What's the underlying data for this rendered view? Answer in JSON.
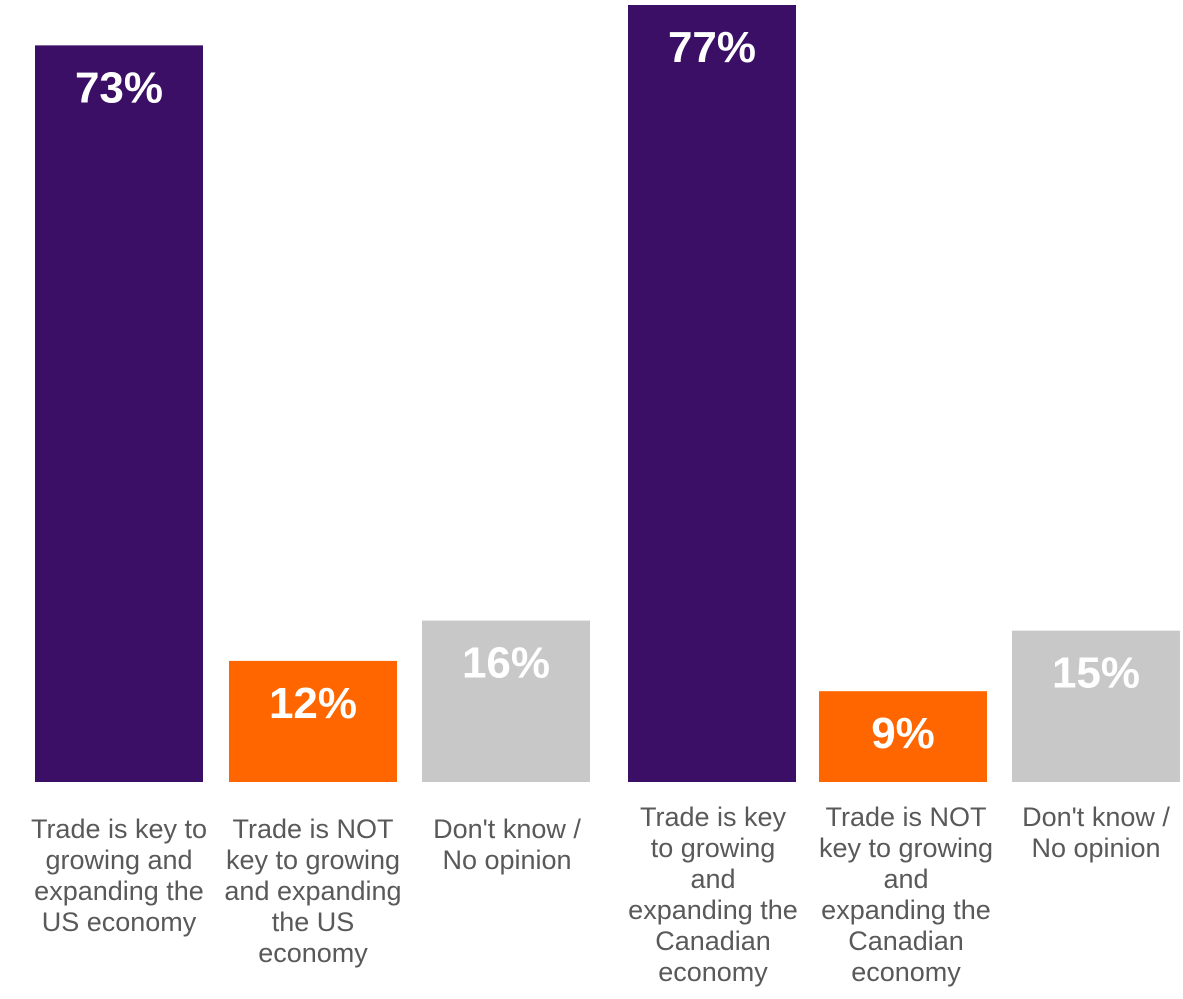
{
  "colors": {
    "key": "#3b0f66",
    "not_key": "#ff6600",
    "dont_know": "#c8c8c8",
    "category_text": "#595959",
    "value_text": "#ffffff"
  },
  "chart_data": [
    {
      "type": "bar",
      "categories": [
        [
          "Trade is key to",
          "growing and",
          "expanding the",
          "US economy"
        ],
        [
          "Trade is NOT",
          "key to growing",
          "and expanding",
          "the US",
          "economy"
        ],
        [
          "Don't know /",
          "No opinion"
        ]
      ],
      "values": [
        73,
        12,
        16
      ],
      "value_labels": [
        "73%",
        "12%",
        "16%"
      ],
      "ylim": [
        0,
        77
      ],
      "grid": false,
      "legend": "none"
    },
    {
      "type": "bar",
      "categories": [
        [
          "Trade is key",
          "to growing",
          "and",
          "expanding the",
          "Canadian",
          "economy"
        ],
        [
          "Trade is NOT",
          "key to growing",
          "and",
          "expanding the",
          "Canadian",
          "economy"
        ],
        [
          "Don't know /",
          "No opinion"
        ]
      ],
      "values": [
        77,
        9,
        15
      ],
      "value_labels": [
        "77%",
        "9%",
        "15%"
      ],
      "ylim": [
        0,
        77
      ],
      "grid": false,
      "legend": "none"
    }
  ]
}
